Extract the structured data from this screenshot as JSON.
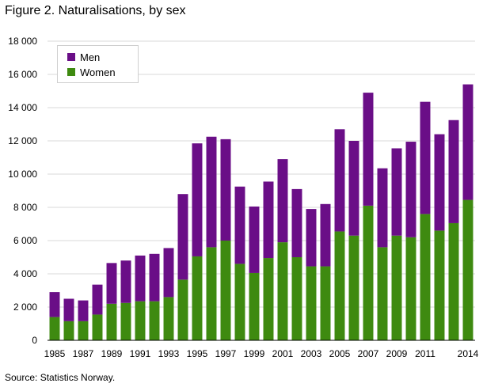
{
  "title": "Figure 2. Naturalisations, by sex",
  "source": "Source: Statistics Norway.",
  "colors": {
    "men": "#6a0e87",
    "women": "#3e8a10",
    "grid": "#d9d9d9",
    "axis": "#000000"
  },
  "chart_data": {
    "type": "bar",
    "stacked": true,
    "title": "Figure 2. Naturalisations, by sex",
    "xlabel": "",
    "ylabel": "",
    "ylim": [
      0,
      18000
    ],
    "yticks": [
      0,
      2000,
      4000,
      6000,
      8000,
      10000,
      12000,
      14000,
      16000,
      18000
    ],
    "ytick_labels": [
      "0",
      "2 000",
      "4 000",
      "6 000",
      "8 000",
      "10 000",
      "12 000",
      "14 000",
      "16 000",
      "18 000"
    ],
    "categories": [
      "1985",
      "1986",
      "1987",
      "1988",
      "1989",
      "1990",
      "1991",
      "1992",
      "1993",
      "1994",
      "1995",
      "1996",
      "1997",
      "1998",
      "1999",
      "2000",
      "2001",
      "2002",
      "2003",
      "2004",
      "2005",
      "2006",
      "2007",
      "2008",
      "2009",
      "2010",
      "2011",
      "2012",
      "2013",
      "2014"
    ],
    "xtick_labels": [
      "1985",
      "",
      "1987",
      "",
      "1989",
      "",
      "1991",
      "",
      "1993",
      "",
      "1995",
      "",
      "1997",
      "",
      "1999",
      "",
      "2001",
      "",
      "2003",
      "",
      "2005",
      "",
      "2007",
      "",
      "2009",
      "",
      "2011",
      "",
      "",
      "2014"
    ],
    "legend_position": "top-left",
    "series": [
      {
        "name": "Men",
        "values": [
          1500,
          1350,
          1250,
          1800,
          2450,
          2550,
          2750,
          2850,
          2950,
          5150,
          6800,
          6650,
          6100,
          4650,
          4000,
          4600,
          5000,
          4100,
          3450,
          3750,
          6150,
          5700,
          6800,
          4750,
          5250,
          5750,
          6750,
          5800,
          6200,
          6950
        ]
      },
      {
        "name": "Women",
        "values": [
          1400,
          1150,
          1150,
          1550,
          2200,
          2250,
          2350,
          2350,
          2600,
          3650,
          5050,
          5600,
          6000,
          4600,
          4050,
          4950,
          5900,
          5000,
          4450,
          4450,
          6550,
          6300,
          8100,
          5600,
          6300,
          6200,
          7600,
          6600,
          7050,
          8450
        ]
      }
    ]
  }
}
